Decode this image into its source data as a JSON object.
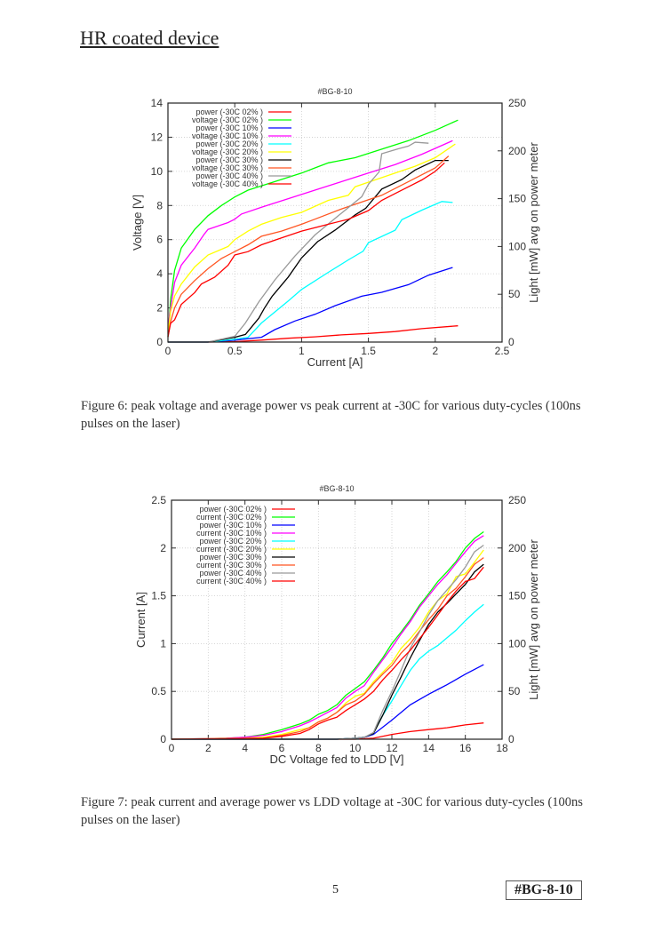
{
  "section_title": "HR coated device",
  "page_number": "5",
  "doc_id": "#BG-8-10",
  "figures": [
    {
      "caption": "Figure 6: peak voltage and average power vs peak current at -30C for various duty-cycles (100ns pulses on the laser)"
    },
    {
      "caption": "Figure 7: peak current and average power vs LDD voltage at -30C for various duty-cycles (100ns pulses on the laser)"
    }
  ],
  "chart_data": [
    {
      "type": "line",
      "title": "#BG-8-10",
      "xlabel": "Current [A]",
      "ylabel": "Voltage [V]",
      "y2label": "Light [mW] avg on power meter",
      "xlim": [
        0,
        2.5
      ],
      "ylim": [
        0,
        14
      ],
      "y2lim": [
        0,
        250
      ],
      "xticks": [
        "0",
        "0.5",
        "1",
        "1.5",
        "2",
        "2.5"
      ],
      "yticks": [
        "0",
        "2",
        "4",
        "6",
        "8",
        "10",
        "12",
        "14"
      ],
      "y2ticks": [
        "0",
        "50",
        "100",
        "150",
        "200",
        "250"
      ],
      "grid": true,
      "legend_position": "top-left",
      "series": [
        {
          "name": "power (-30C 02% )",
          "color": "#ff0000",
          "axis": "y2",
          "x": [
            0,
            0.3,
            0.5,
            0.7,
            0.9,
            1.1,
            1.3,
            1.5,
            1.7,
            1.9,
            2.17
          ],
          "y": [
            0,
            0,
            0.5,
            2,
            4,
            5.5,
            7.5,
            9,
            11,
            14,
            17
          ]
        },
        {
          "name": "voltage (-30C 02% )",
          "color": "#00ff00",
          "axis": "y",
          "x": [
            0,
            0.02,
            0.05,
            0.1,
            0.2,
            0.3,
            0.4,
            0.5,
            0.6,
            0.8,
            1.0,
            1.1,
            1.2,
            1.4,
            1.6,
            1.8,
            2.0,
            2.17
          ],
          "y": [
            0.3,
            2.5,
            4.2,
            5.5,
            6.6,
            7.4,
            8.0,
            8.5,
            8.9,
            9.4,
            9.9,
            10.2,
            10.5,
            10.8,
            11.3,
            11.8,
            12.4,
            13.0
          ]
        },
        {
          "name": "power (-30C 10% )",
          "color": "#0000ff",
          "axis": "y2",
          "x": [
            0,
            0.3,
            0.5,
            0.7,
            0.8,
            0.95,
            1.1,
            1.25,
            1.45,
            1.6,
            1.8,
            1.95,
            2.13
          ],
          "y": [
            0,
            0,
            2,
            5,
            13,
            22,
            29,
            38,
            48,
            52,
            60,
            70,
            78
          ]
        },
        {
          "name": "voltage (-30C 10% )",
          "color": "#ff00ff",
          "axis": "y",
          "x": [
            0,
            0.02,
            0.05,
            0.1,
            0.2,
            0.27,
            0.3,
            0.45,
            0.5,
            0.55,
            0.7,
            0.9,
            1.1,
            1.3,
            1.5,
            1.7,
            1.9,
            2.13
          ],
          "y": [
            0.8,
            2.0,
            3.5,
            4.5,
            5.5,
            6.3,
            6.6,
            7.0,
            7.2,
            7.5,
            7.9,
            8.4,
            8.9,
            9.4,
            9.9,
            10.4,
            11.0,
            11.8
          ]
        },
        {
          "name": "power (-30C 20% )",
          "color": "#00ffff",
          "axis": "y2",
          "x": [
            0,
            0.3,
            0.5,
            0.6,
            0.7,
            0.9,
            1.0,
            1.2,
            1.35,
            1.46,
            1.5,
            1.7,
            1.75,
            1.9,
            2.05,
            2.13
          ],
          "y": [
            0,
            0,
            3,
            5,
            20,
            43,
            55,
            73,
            86,
            95,
            104,
            117,
            128,
            138,
            147,
            146
          ]
        },
        {
          "name": "voltage (-30C 20% )",
          "color": "#ffff00",
          "axis": "y",
          "x": [
            0,
            0.02,
            0.05,
            0.1,
            0.2,
            0.3,
            0.45,
            0.5,
            0.6,
            0.7,
            0.85,
            1.0,
            1.2,
            1.35,
            1.4,
            1.55,
            1.7,
            1.85,
            2.0,
            2.15
          ],
          "y": [
            0.5,
            1.8,
            2.7,
            3.4,
            4.4,
            5.1,
            5.6,
            6.0,
            6.5,
            6.9,
            7.3,
            7.6,
            8.3,
            8.6,
            9.1,
            9.5,
            9.9,
            10.3,
            10.8,
            11.6
          ]
        },
        {
          "name": "power (-30C 30% )",
          "color": "#000000",
          "axis": "y2",
          "x": [
            0,
            0.3,
            0.5,
            0.58,
            0.68,
            0.72,
            0.78,
            0.9,
            1.0,
            1.12,
            1.25,
            1.4,
            1.48,
            1.6,
            1.75,
            1.85,
            2.0,
            2.1
          ],
          "y": [
            0,
            0,
            5,
            8,
            25,
            35,
            48,
            68,
            88,
            105,
            117,
            133,
            140,
            160,
            170,
            180,
            190,
            190
          ]
        },
        {
          "name": "voltage (-30C 30% )",
          "color": "#ff5522",
          "axis": "y",
          "x": [
            0,
            0.02,
            0.05,
            0.1,
            0.2,
            0.3,
            0.4,
            0.5,
            0.6,
            0.7,
            0.85,
            1.0,
            1.1,
            1.3,
            1.45,
            1.6,
            1.8,
            2.0,
            2.1
          ],
          "y": [
            0.3,
            1.2,
            2.0,
            2.8,
            3.6,
            4.3,
            4.9,
            5.3,
            5.7,
            6.2,
            6.5,
            6.9,
            7.2,
            7.8,
            8.2,
            8.6,
            9.4,
            10.2,
            10.9
          ]
        },
        {
          "name": "power (-30C 40% )",
          "color": "#999999",
          "axis": "y2",
          "x": [
            0,
            0.3,
            0.5,
            0.58,
            0.68,
            0.8,
            0.95,
            1.1,
            1.3,
            1.45,
            1.5,
            1.58,
            1.6,
            1.72,
            1.8,
            1.85,
            1.95
          ],
          "y": [
            0,
            0,
            6,
            20,
            42,
            65,
            90,
            112,
            135,
            152,
            165,
            178,
            197,
            202,
            205,
            209,
            208
          ]
        },
        {
          "name": "voltage (-30C 40% )",
          "color": "#ff0000",
          "axis": "y",
          "x": [
            0,
            0.02,
            0.05,
            0.1,
            0.2,
            0.25,
            0.35,
            0.45,
            0.5,
            0.6,
            0.7,
            0.85,
            1.0,
            1.2,
            1.35,
            1.5,
            1.6,
            1.7,
            1.8,
            1.9,
            2.0,
            2.07
          ],
          "y": [
            0.3,
            1.1,
            1.3,
            2.2,
            2.9,
            3.4,
            3.8,
            4.5,
            5.1,
            5.3,
            5.7,
            6.1,
            6.5,
            6.9,
            7.2,
            7.7,
            8.3,
            8.7,
            9.1,
            9.5,
            10.0,
            10.5
          ]
        }
      ]
    },
    {
      "type": "line",
      "title": "#BG-8-10",
      "xlabel": "DC Voltage fed to LDD [V]",
      "ylabel": "Current [A]",
      "y2label": "Light [mW] avg on power meter",
      "xlim": [
        0,
        18
      ],
      "ylim": [
        0,
        2.5
      ],
      "y2lim": [
        0,
        250
      ],
      "xticks": [
        "0",
        "2",
        "4",
        "6",
        "8",
        "10",
        "12",
        "14",
        "16",
        "18"
      ],
      "yticks": [
        "0",
        "0.5",
        "1",
        "1.5",
        "2",
        "2.5"
      ],
      "y2ticks": [
        "0",
        "50",
        "100",
        "150",
        "200",
        "250"
      ],
      "grid": true,
      "legend_position": "top-left",
      "series": [
        {
          "name": "power (-30C 02% )",
          "color": "#ff0000",
          "axis": "y2",
          "x": [
            0,
            9,
            10,
            11,
            12,
            13,
            14,
            14.5,
            15,
            16,
            17
          ],
          "y": [
            0,
            0,
            0,
            1,
            5,
            8,
            10,
            11,
            12,
            15,
            17
          ]
        },
        {
          "name": "current (-30C 02% )",
          "color": "#00ff00",
          "axis": "y",
          "x": [
            0,
            3,
            4,
            5,
            6,
            7,
            7.5,
            8,
            8.5,
            9,
            9.5,
            10,
            10.5,
            11,
            11.5,
            12,
            12.5,
            13,
            13.5,
            14,
            14.5,
            15,
            15.5,
            16,
            16.5,
            17
          ],
          "y": [
            0,
            0.01,
            0.02,
            0.05,
            0.1,
            0.16,
            0.2,
            0.26,
            0.3,
            0.36,
            0.46,
            0.53,
            0.6,
            0.72,
            0.85,
            1.0,
            1.12,
            1.25,
            1.4,
            1.52,
            1.65,
            1.75,
            1.86,
            2.0,
            2.1,
            2.17
          ]
        },
        {
          "name": "power (-30C 10% )",
          "color": "#0000ff",
          "axis": "y2",
          "x": [
            0,
            9,
            10,
            10.5,
            11,
            12,
            13,
            14,
            14.5,
            15,
            16,
            17
          ],
          "y": [
            0,
            0,
            1,
            2,
            5,
            20,
            36,
            47,
            52,
            57,
            68,
            78
          ]
        },
        {
          "name": "current (-30C 10% )",
          "color": "#ff00ff",
          "axis": "y",
          "x": [
            0,
            3,
            4,
            5,
            6,
            7,
            7.5,
            8,
            8.5,
            9,
            9.5,
            10,
            10.5,
            11,
            11.5,
            12,
            12.5,
            13,
            13.5,
            14,
            14.5,
            15,
            15.5,
            16,
            16.5,
            17
          ],
          "y": [
            0,
            0.01,
            0.02,
            0.04,
            0.08,
            0.14,
            0.18,
            0.23,
            0.28,
            0.33,
            0.43,
            0.5,
            0.56,
            0.7,
            0.83,
            0.96,
            1.1,
            1.23,
            1.38,
            1.5,
            1.62,
            1.72,
            1.84,
            1.96,
            2.07,
            2.13
          ]
        },
        {
          "name": "power (-30C 20% )",
          "color": "#00ffff",
          "axis": "y2",
          "x": [
            0,
            9,
            10,
            10.5,
            11,
            11.5,
            12,
            12.5,
            13,
            13.5,
            14,
            14.5,
            15,
            15.5,
            16,
            16.5,
            17
          ],
          "y": [
            0,
            0,
            1,
            2,
            6,
            25,
            40,
            56,
            72,
            84,
            92,
            98,
            106,
            114,
            124,
            133,
            141
          ]
        },
        {
          "name": "current (-30C 20% )",
          "color": "#ffff00",
          "axis": "y",
          "x": [
            0,
            4,
            5,
            6,
            7,
            7.5,
            8,
            8.5,
            9,
            9.5,
            10,
            10.5,
            11,
            11.5,
            12,
            12.5,
            13,
            13.5,
            14,
            14.5,
            15,
            15.5,
            16,
            16.5,
            17
          ],
          "y": [
            0,
            0.01,
            0.02,
            0.05,
            0.1,
            0.12,
            0.18,
            0.22,
            0.28,
            0.38,
            0.45,
            0.48,
            0.6,
            0.7,
            0.8,
            0.95,
            1.05,
            1.17,
            1.33,
            1.45,
            1.52,
            1.7,
            1.73,
            1.85,
            1.98
          ]
        },
        {
          "name": "power (-30C 30% )",
          "color": "#000000",
          "axis": "y2",
          "x": [
            0,
            9,
            10,
            10.5,
            11,
            11.5,
            12,
            12.5,
            13,
            13.5,
            14,
            14.5,
            15,
            15.5,
            16,
            16.5,
            17
          ],
          "y": [
            0,
            0,
            1,
            2,
            6,
            25,
            46,
            65,
            85,
            103,
            120,
            133,
            142,
            152,
            162,
            175,
            183
          ]
        },
        {
          "name": "current (-30C 30% )",
          "color": "#ff5522",
          "axis": "y",
          "x": [
            0,
            5,
            6,
            7,
            7.5,
            8,
            8.5,
            9,
            9.5,
            10,
            10.5,
            11,
            11.5,
            12,
            12.5,
            13,
            13.5,
            14,
            14.5,
            15,
            15.5,
            16,
            16.5,
            17
          ],
          "y": [
            0,
            0.01,
            0.04,
            0.08,
            0.12,
            0.18,
            0.22,
            0.28,
            0.36,
            0.4,
            0.47,
            0.58,
            0.68,
            0.77,
            0.9,
            1.0,
            1.13,
            1.25,
            1.36,
            1.5,
            1.58,
            1.7,
            1.83,
            1.9
          ]
        },
        {
          "name": "power (-30C 40% )",
          "color": "#999999",
          "axis": "y2",
          "x": [
            0,
            9,
            10,
            10.5,
            11,
            11.5,
            12,
            12.5,
            13,
            13.5,
            14,
            14.5,
            15,
            15.5,
            16,
            16.5,
            17
          ],
          "y": [
            0,
            0,
            1,
            2,
            7,
            30,
            50,
            72,
            95,
            112,
            130,
            145,
            156,
            167,
            180,
            196,
            203
          ]
        },
        {
          "name": "current (-30C 40% )",
          "color": "#ff0000",
          "axis": "y",
          "x": [
            0,
            5,
            6,
            7,
            7.5,
            8,
            8.5,
            9,
            9.5,
            10,
            10.5,
            11,
            11.5,
            12,
            12.5,
            13,
            13.5,
            14,
            14.5,
            15,
            15.5,
            16,
            16.5,
            17
          ],
          "y": [
            0,
            0.01,
            0.03,
            0.06,
            0.1,
            0.16,
            0.2,
            0.23,
            0.3,
            0.36,
            0.42,
            0.5,
            0.62,
            0.72,
            0.83,
            0.93,
            1.05,
            1.17,
            1.3,
            1.43,
            1.55,
            1.65,
            1.68,
            1.8
          ]
        }
      ]
    }
  ]
}
